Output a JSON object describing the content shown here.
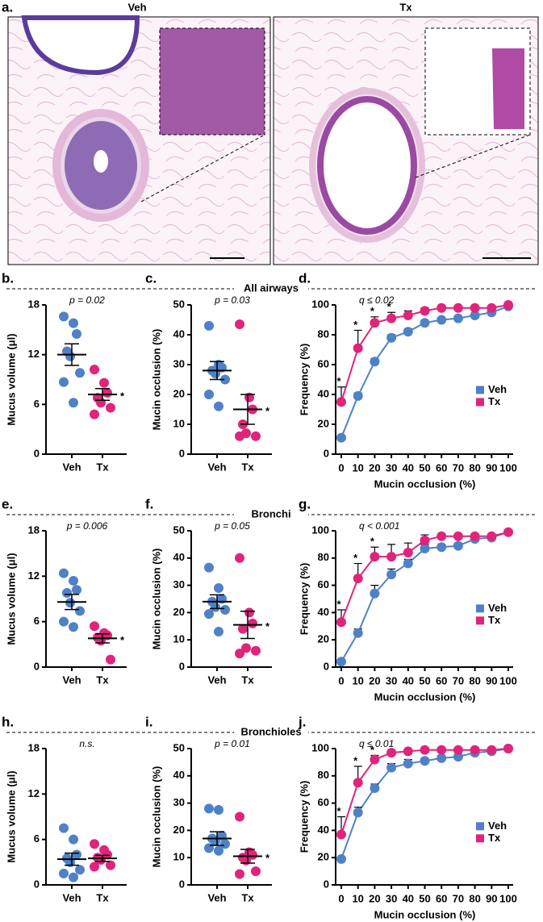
{
  "image_panel": {
    "label": "a.",
    "titles": [
      "Veh",
      "Tx"
    ]
  },
  "sections": [
    "All airways",
    "Bronchi",
    "Bronchioles"
  ],
  "chart_data": [
    {
      "type": "dot",
      "panel_label": "b.",
      "ylabel": "Mucus volume (μl)",
      "annotation": "p = 0.02",
      "categories": [
        "Veh",
        "Tx"
      ],
      "groups": [
        {
          "color": "#4f81c7",
          "values": [
            16.6,
            15.8,
            14.5,
            12.4,
            11.8,
            9.8,
            8.7,
            6.2
          ],
          "mean": 12.0,
          "error": 1.3
        },
        {
          "color": "#e0247a",
          "values": [
            10.2,
            8.6,
            7.4,
            6.8,
            6.2,
            5.6,
            4.8
          ],
          "mean": 7.2,
          "error": 0.7
        }
      ],
      "significance": "*",
      "ylim": [
        0,
        18
      ],
      "yticks": [
        0,
        6,
        12,
        18
      ]
    },
    {
      "type": "dot",
      "panel_label": "c.",
      "ylabel": "Mucin occlusion (%)",
      "annotation": "p = 0.03",
      "categories": [
        "Veh",
        "Tx"
      ],
      "groups": [
        {
          "color": "#4f81c7",
          "values": [
            43,
            30,
            29,
            28,
            27,
            25,
            20,
            16
          ],
          "mean": 28,
          "error": 3
        },
        {
          "color": "#e0247a",
          "values": [
            43.5,
            19,
            15,
            10,
            7,
            6,
            6
          ],
          "mean": 15,
          "error": 5
        }
      ],
      "significance": "*",
      "ylim": [
        0,
        50
      ],
      "yticks": [
        0,
        10,
        20,
        30,
        40,
        50
      ]
    },
    {
      "type": "line",
      "panel_label": "d.",
      "ylabel": "Frequency (%)",
      "xlabel": "Mucin occlusion (%)",
      "annotation": "q ≤ 0.02",
      "x": [
        0,
        10,
        20,
        30,
        40,
        50,
        60,
        70,
        80,
        90,
        100
      ],
      "series": [
        {
          "name": "Veh",
          "color": "#4f81c7",
          "values": [
            11,
            39,
            62,
            78,
            82,
            88,
            90,
            91,
            93,
            95,
            99
          ],
          "errors": [
            1,
            2,
            2,
            2,
            2,
            1,
            1,
            1,
            1,
            1,
            0
          ]
        },
        {
          "name": "Tx",
          "color": "#e0247a",
          "values": [
            35,
            71,
            88,
            91,
            93,
            96,
            98,
            98,
            98,
            98,
            100
          ],
          "errors": [
            10,
            12,
            4,
            4,
            3,
            2,
            1,
            1,
            1,
            1,
            0
          ]
        }
      ],
      "significance": [
        "*",
        "*",
        "*",
        "*",
        null,
        null,
        null,
        null,
        null,
        null,
        null
      ],
      "xlim": [
        0,
        100
      ],
      "xticks": [
        0,
        10,
        20,
        30,
        40,
        50,
        60,
        70,
        80,
        90,
        100
      ],
      "ylim": [
        0,
        100
      ],
      "yticks": [
        0,
        20,
        40,
        60,
        80,
        100
      ],
      "legend": "right"
    },
    {
      "type": "dot",
      "panel_label": "e.",
      "ylabel": "Mucus volume (μl)",
      "annotation": "p = 0.006",
      "categories": [
        "Veh",
        "Tx"
      ],
      "groups": [
        {
          "color": "#4f81c7",
          "values": [
            12.4,
            11.4,
            10.2,
            9.8,
            8.5,
            7.4,
            6.0,
            5.3
          ],
          "mean": 8.6,
          "error": 1.0
        },
        {
          "color": "#e0247a",
          "values": [
            5.4,
            4.5,
            4.2,
            3.9,
            3.5,
            1.0
          ],
          "mean": 3.8,
          "error": 0.6
        }
      ],
      "significance": "*",
      "ylim": [
        0,
        18
      ],
      "yticks": [
        0,
        6,
        12,
        18
      ]
    },
    {
      "type": "dot",
      "panel_label": "f.",
      "ylabel": "Mucin occlusion (%)",
      "annotation": "p = 0.05",
      "categories": [
        "Veh",
        "Tx"
      ],
      "groups": [
        {
          "color": "#4f81c7",
          "values": [
            36.5,
            29,
            25,
            24,
            22,
            21,
            19.5,
            13
          ],
          "mean": 24,
          "error": 2.5
        },
        {
          "color": "#e0247a",
          "values": [
            40,
            20,
            16,
            14,
            7,
            6,
            5
          ],
          "mean": 15.5,
          "error": 5
        }
      ],
      "significance": "*",
      "ylim": [
        0,
        50
      ],
      "yticks": [
        0,
        10,
        20,
        30,
        40,
        50
      ]
    },
    {
      "type": "line",
      "panel_label": "g.",
      "ylabel": "Frequency (%)",
      "xlabel": "Mucin occlusion (%)",
      "annotation": "q < 0.001",
      "x": [
        0,
        10,
        20,
        30,
        40,
        50,
        60,
        70,
        80,
        90,
        100
      ],
      "series": [
        {
          "name": "Veh",
          "color": "#4f81c7",
          "values": [
            4,
            25,
            54,
            68,
            76,
            87,
            88,
            89,
            94,
            95,
            99
          ],
          "errors": [
            1,
            3,
            6,
            4,
            3,
            3,
            2,
            2,
            2,
            1,
            0
          ]
        },
        {
          "name": "Tx",
          "color": "#e0247a",
          "values": [
            33,
            65,
            81,
            81,
            84,
            93,
            96,
            96,
            96,
            96,
            99
          ],
          "errors": [
            9,
            11,
            7,
            9,
            7,
            4,
            1,
            1,
            1,
            1,
            0
          ]
        }
      ],
      "significance": [
        "*",
        "*",
        "*",
        null,
        null,
        null,
        null,
        null,
        null,
        null,
        null
      ],
      "xlim": [
        0,
        100
      ],
      "xticks": [
        0,
        10,
        20,
        30,
        40,
        50,
        60,
        70,
        80,
        90,
        100
      ],
      "ylim": [
        0,
        100
      ],
      "yticks": [
        0,
        20,
        40,
        60,
        80,
        100
      ],
      "legend": "right"
    },
    {
      "type": "dot",
      "panel_label": "h.",
      "ylabel": "Mucus volume (μl)",
      "annotation": "n.s.",
      "categories": [
        "Veh",
        "Tx"
      ],
      "groups": [
        {
          "color": "#4f81c7",
          "values": [
            7.5,
            6.0,
            4.0,
            3.5,
            3.0,
            2.0,
            1.5,
            1.0
          ],
          "mean": 3.4,
          "error": 0.8
        },
        {
          "color": "#e0247a",
          "values": [
            5.4,
            4.6,
            4.0,
            3.6,
            3.3,
            2.6,
            2.4
          ],
          "mean": 3.5,
          "error": 0.4
        }
      ],
      "ylim": [
        0,
        18
      ],
      "yticks": [
        0,
        6,
        12,
        18
      ]
    },
    {
      "type": "dot",
      "panel_label": "i.",
      "ylabel": "Mucin occlusion (%)",
      "annotation": "p = 0.01",
      "categories": [
        "Veh",
        "Tx"
      ],
      "groups": [
        {
          "color": "#4f81c7",
          "values": [
            28,
            27.5,
            18,
            17,
            16,
            15,
            13.5,
            12.5
          ],
          "mean": 17,
          "error": 2.5
        },
        {
          "color": "#e0247a",
          "values": [
            25,
            12,
            11,
            10,
            9,
            5,
            4
          ],
          "mean": 10.5,
          "error": 2.5
        }
      ],
      "significance": "*",
      "ylim": [
        0,
        50
      ],
      "yticks": [
        0,
        10,
        20,
        30,
        40,
        50
      ]
    },
    {
      "type": "line",
      "panel_label": "j.",
      "ylabel": "Frequency (%)",
      "xlabel": "Mucin occlusion (%)",
      "annotation": "q ≤ 0.01",
      "x": [
        0,
        10,
        20,
        30,
        40,
        50,
        60,
        70,
        80,
        90,
        100
      ],
      "series": [
        {
          "name": "Veh",
          "color": "#4f81c7",
          "values": [
            19,
            53,
            71,
            86,
            89,
            91,
            93,
            94,
            97,
            98,
            100
          ],
          "errors": [
            1,
            4,
            3,
            3,
            3,
            2,
            2,
            2,
            2,
            1,
            0
          ]
        },
        {
          "name": "Tx",
          "color": "#e0247a",
          "values": [
            37,
            75,
            92,
            97,
            98,
            99,
            99,
            99,
            99,
            99,
            100
          ],
          "errors": [
            13,
            12,
            3,
            2,
            1,
            1,
            1,
            1,
            1,
            0,
            0
          ]
        }
      ],
      "significance": [
        "*",
        "*",
        "*",
        null,
        null,
        null,
        null,
        null,
        null,
        null,
        null
      ],
      "xlim": [
        0,
        100
      ],
      "xticks": [
        0,
        10,
        20,
        30,
        40,
        50,
        60,
        70,
        80,
        90,
        100
      ],
      "ylim": [
        0,
        100
      ],
      "yticks": [
        0,
        20,
        40,
        60,
        80,
        100
      ],
      "legend": "right"
    }
  ]
}
